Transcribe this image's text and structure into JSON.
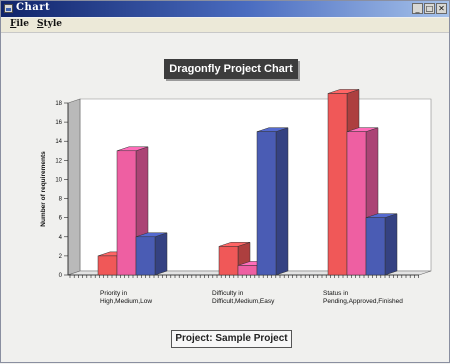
{
  "window": {
    "title": "Chart",
    "menu": [
      "File",
      "Style"
    ],
    "controls": [
      "_",
      "□",
      "✕"
    ]
  },
  "chart_data": {
    "type": "bar",
    "style": "3d-clustered",
    "title": "Dragonfly Project Chart",
    "footer": "Project: Sample Project",
    "ylabel": "Number of requirements",
    "xlabel": "",
    "ylim": [
      0,
      18
    ],
    "yticks": [
      0,
      2,
      4,
      6,
      8,
      10,
      12,
      14,
      16,
      18
    ],
    "grid": false,
    "legend": "none",
    "groups": [
      {
        "label_lines": [
          "Priority in",
          "High,Medium,Low"
        ],
        "bars": [
          {
            "category": "High",
            "value": 2,
            "color": "#f05858"
          },
          {
            "category": "Medium",
            "value": 13,
            "color": "#ee5fa2"
          },
          {
            "category": "Low",
            "value": 4,
            "color": "#4a5cb4"
          }
        ]
      },
      {
        "label_lines": [
          "Difficulty in",
          "Difficult,Medium,Easy"
        ],
        "bars": [
          {
            "category": "Difficult",
            "value": 3,
            "color": "#f05858"
          },
          {
            "category": "Medium",
            "value": 1,
            "color": "#ee5fa2"
          },
          {
            "category": "Easy",
            "value": 15,
            "color": "#4a5cb4"
          }
        ]
      },
      {
        "label_lines": [
          "Status in",
          "Pending,Approved,Finished"
        ],
        "bars": [
          {
            "category": "Pending",
            "value": 19,
            "color": "#f05858"
          },
          {
            "category": "Approved",
            "value": 15,
            "color": "#ee5fa2"
          },
          {
            "category": "Finished",
            "value": 6,
            "color": "#4a5cb4"
          }
        ]
      }
    ]
  }
}
